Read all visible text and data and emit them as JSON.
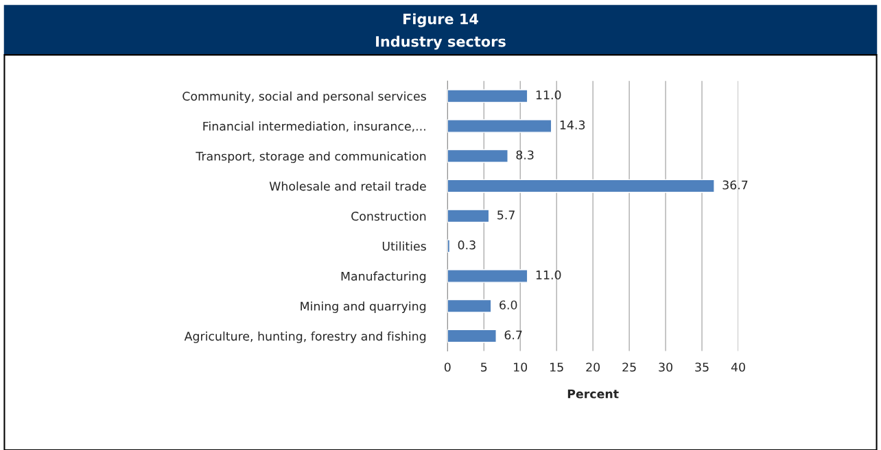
{
  "chart_data": {
    "type": "bar",
    "orientation": "horizontal",
    "title": "Figure 14",
    "subtitle": "Industry sectors",
    "xlabel": "Percent",
    "categories": [
      "Community, social and personal services",
      "Financial intermediation, insurance,...",
      "Transport, storage and communication",
      "Wholesale and retail trade",
      "Construction",
      "Utilities",
      "Manufacturing",
      "Mining and quarrying",
      "Agriculture, hunting, forestry and fishing"
    ],
    "values": [
      11.0,
      14.3,
      8.3,
      36.7,
      5.7,
      0.3,
      11.0,
      6.0,
      6.7
    ],
    "value_labels": [
      "11.0",
      "14.3",
      "8.3",
      "36.7",
      "5.7",
      "0.3",
      "11.0",
      "6.0",
      "6.7"
    ],
    "color": "#4f81bd",
    "xlim": [
      0,
      40
    ],
    "xticks": [
      0,
      5,
      10,
      15,
      20,
      25,
      30,
      35,
      40
    ],
    "grid": "x"
  }
}
